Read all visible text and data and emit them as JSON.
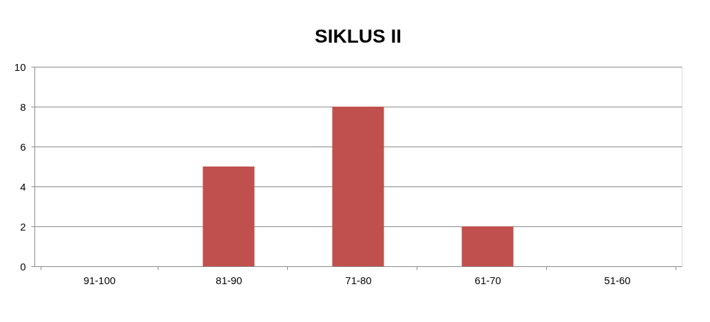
{
  "chart_data": {
    "type": "bar",
    "title": "SIKLUS II",
    "categories": [
      "91-100",
      "81-90",
      "71-80",
      "61-70",
      "51-60"
    ],
    "values": [
      0,
      5,
      8,
      2,
      0
    ],
    "color": "#c0504d",
    "ylim": [
      0,
      10
    ],
    "yticks": [
      0,
      2,
      4,
      6,
      8,
      10
    ],
    "grid": "y"
  }
}
